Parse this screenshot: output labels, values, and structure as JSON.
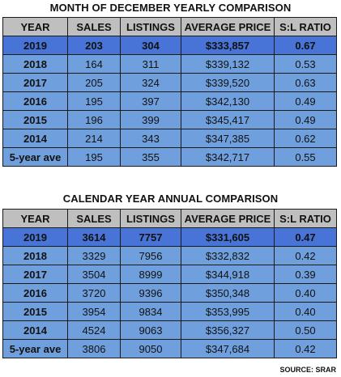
{
  "table1": {
    "title": "MONTH OF DECEMBER YEARLY COMPARISON",
    "headers": [
      "YEAR",
      "SALES",
      "LISTINGS",
      "AVERAGE PRICE",
      "S:L RATIO"
    ],
    "rows": [
      [
        "2019",
        "203",
        "304",
        "$333,857",
        "0.67"
      ],
      [
        "2018",
        "164",
        "311",
        "$339,132",
        "0.53"
      ],
      [
        "2017",
        "205",
        "324",
        "$339,520",
        "0.63"
      ],
      [
        "2016",
        "195",
        "397",
        "$342,130",
        "0.49"
      ],
      [
        "2015",
        "196",
        "399",
        "$345,417",
        "0.49"
      ],
      [
        "2014",
        "214",
        "343",
        "$347,385",
        "0.62"
      ],
      [
        "5-year ave",
        "195",
        "355",
        "$342,717",
        "0.55"
      ]
    ]
  },
  "table2": {
    "title": "CALENDAR YEAR ANNUAL COMPARISON",
    "headers": [
      "YEAR",
      "SALES",
      "LISTINGS",
      "AVERAGE PRICE",
      "S:L RATIO"
    ],
    "rows": [
      [
        "2019",
        "3614",
        "7757",
        "$331,605",
        "0.47"
      ],
      [
        "2018",
        "3329",
        "7956",
        "$332,832",
        "0.42"
      ],
      [
        "2017",
        "3504",
        "8999",
        "$344,918",
        "0.39"
      ],
      [
        "2016",
        "3720",
        "9396",
        "$350,348",
        "0.40"
      ],
      [
        "2015",
        "3954",
        "9834",
        "$353,995",
        "0.40"
      ],
      [
        "2014",
        "4524",
        "9063",
        "$356,327",
        "0.50"
      ],
      [
        "5-year ave",
        "3806",
        "9050",
        "$347,684",
        "0.42"
      ]
    ]
  },
  "source": "SOURCE: SRAR",
  "colors": {
    "header_bg": "#bfbfbf",
    "row_bg": "#6fa0dd",
    "highlight_bg": "#4774d6"
  }
}
